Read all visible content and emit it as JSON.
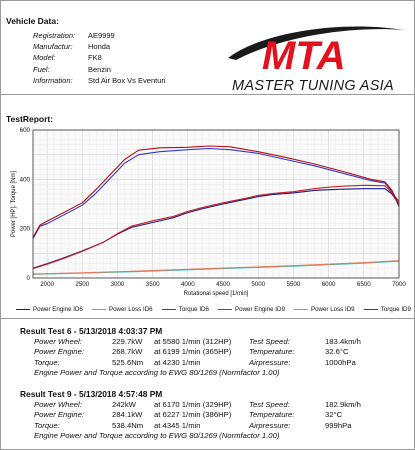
{
  "vehicle": {
    "title": "Vehicle Data:",
    "rows": [
      {
        "key": "Registration:",
        "value": "AE9999"
      },
      {
        "key": "Manufactur:",
        "value": "Honda"
      },
      {
        "key": "Model:",
        "value": "FK8"
      },
      {
        "key": "Fuel:",
        "value": "Benzin"
      },
      {
        "key": "Information:",
        "value": "Std Air Box Vs Eventuri"
      }
    ]
  },
  "logo": {
    "mark": "MTA",
    "text": "MASTER TUNING ASIA",
    "colors": {
      "red": "#e3101d",
      "black": "#1a1a1a"
    }
  },
  "testreport_title": "TestReport:",
  "chart_data": {
    "type": "line",
    "xlabel": "Rotational speed [1/min]",
    "ylabel": "Power [HP], Torque [Nm]",
    "xlim": [
      1800,
      7000
    ],
    "ylim": [
      0,
      600
    ],
    "xticks": [
      2000,
      2500,
      3000,
      3500,
      4000,
      4500,
      5000,
      5500,
      6000,
      6500,
      7000
    ],
    "yticks": [
      0,
      200,
      400,
      600
    ],
    "grid": true,
    "series": [
      {
        "name": "Power Engine ID6",
        "color": "#1c1c8c",
        "width": 1.1,
        "points": [
          [
            1800,
            40
          ],
          [
            2000,
            58
          ],
          [
            2200,
            78
          ],
          [
            2500,
            110
          ],
          [
            2800,
            145
          ],
          [
            3000,
            178
          ],
          [
            3200,
            205
          ],
          [
            3500,
            225
          ],
          [
            3800,
            245
          ],
          [
            4000,
            265
          ],
          [
            4200,
            280
          ],
          [
            4500,
            300
          ],
          [
            4800,
            318
          ],
          [
            5000,
            330
          ],
          [
            5200,
            338
          ],
          [
            5500,
            345
          ],
          [
            5800,
            355
          ],
          [
            6000,
            358
          ],
          [
            6200,
            360
          ],
          [
            6500,
            362
          ],
          [
            6800,
            362
          ],
          [
            6900,
            340
          ],
          [
            7000,
            300
          ]
        ]
      },
      {
        "name": "Power Loss ID6",
        "color": "#2cc3c3",
        "width": 1.1,
        "points": [
          [
            1800,
            15
          ],
          [
            2500,
            20
          ],
          [
            3500,
            28
          ],
          [
            4500,
            38
          ],
          [
            5500,
            48
          ],
          [
            6500,
            60
          ],
          [
            7000,
            68
          ]
        ]
      },
      {
        "name": "Torque ID6",
        "color": "#3535d4",
        "width": 1.1,
        "points": [
          [
            1800,
            160
          ],
          [
            1900,
            210
          ],
          [
            2000,
            220
          ],
          [
            2200,
            250
          ],
          [
            2500,
            295
          ],
          [
            2700,
            345
          ],
          [
            2900,
            405
          ],
          [
            3100,
            465
          ],
          [
            3300,
            500
          ],
          [
            3600,
            512
          ],
          [
            4000,
            520
          ],
          [
            4300,
            525
          ],
          [
            4600,
            520
          ],
          [
            5000,
            505
          ],
          [
            5400,
            480
          ],
          [
            5800,
            455
          ],
          [
            6200,
            425
          ],
          [
            6600,
            395
          ],
          [
            6800,
            385
          ],
          [
            6900,
            350
          ],
          [
            7000,
            290
          ]
        ]
      },
      {
        "name": "Power Engine ID9",
        "color": "#c82020",
        "width": 1.1,
        "points": [
          [
            1800,
            38
          ],
          [
            2000,
            56
          ],
          [
            2200,
            76
          ],
          [
            2500,
            108
          ],
          [
            2800,
            145
          ],
          [
            3000,
            180
          ],
          [
            3200,
            210
          ],
          [
            3500,
            232
          ],
          [
            3800,
            250
          ],
          [
            4000,
            270
          ],
          [
            4200,
            285
          ],
          [
            4500,
            305
          ],
          [
            4800,
            322
          ],
          [
            5000,
            335
          ],
          [
            5200,
            342
          ],
          [
            5500,
            350
          ],
          [
            5800,
            362
          ],
          [
            6000,
            368
          ],
          [
            6200,
            372
          ],
          [
            6500,
            376
          ],
          [
            6800,
            374
          ],
          [
            6900,
            345
          ],
          [
            7000,
            310
          ]
        ]
      },
      {
        "name": "Power Loss ID9",
        "color": "#e27a5a",
        "width": 1.1,
        "points": [
          [
            1800,
            16
          ],
          [
            2500,
            21
          ],
          [
            3500,
            30
          ],
          [
            4500,
            40
          ],
          [
            5500,
            50
          ],
          [
            6500,
            62
          ],
          [
            7000,
            70
          ]
        ]
      },
      {
        "name": "Torque ID9",
        "color": "#b01010",
        "width": 1.1,
        "points": [
          [
            1800,
            165
          ],
          [
            1900,
            215
          ],
          [
            2000,
            230
          ],
          [
            2200,
            260
          ],
          [
            2500,
            305
          ],
          [
            2700,
            360
          ],
          [
            2900,
            420
          ],
          [
            3100,
            480
          ],
          [
            3300,
            518
          ],
          [
            3600,
            528
          ],
          [
            4000,
            530
          ],
          [
            4300,
            535
          ],
          [
            4600,
            532
          ],
          [
            5000,
            512
          ],
          [
            5400,
            488
          ],
          [
            5800,
            462
          ],
          [
            6200,
            432
          ],
          [
            6600,
            400
          ],
          [
            6800,
            390
          ],
          [
            6900,
            355
          ],
          [
            7000,
            295
          ]
        ]
      }
    ]
  },
  "results": [
    {
      "title": "Result Test 6 - 5/13/2018 4:03:37 PM",
      "rows": [
        {
          "label": "Power Wheel:",
          "value": "229.7kW",
          "at": "at 5580 1/min (312HP)",
          "label2": "Test Speed:",
          "value2": "183.4km/h"
        },
        {
          "label": "Power Engine:",
          "value": "268.7kW",
          "at": "at 6199 1/min (365HP)",
          "label2": "Temperature:",
          "value2": "32.6°C"
        },
        {
          "label": "Torque:",
          "value": "525.6Nm",
          "at": "at 4230 1/min",
          "label2": "Airpressure:",
          "value2": "1000hPa"
        }
      ],
      "note": "Engine Power and Torque according to EWG 80/1269 (Normfactor 1.00)"
    },
    {
      "title": "Result Test 9 - 5/13/2018 4:57:48 PM",
      "rows": [
        {
          "label": "Power Wheel:",
          "value": "242kW",
          "at": "at 6170 1/min (329HP)",
          "label2": "Test Speed:",
          "value2": "182.9km/h"
        },
        {
          "label": "Power Engine:",
          "value": "284.1kW",
          "at": "at 6227 1/min (386HP)",
          "label2": "Temperature:",
          "value2": "32°C"
        },
        {
          "label": "Torque:",
          "value": "538.4Nm",
          "at": "at 4345 1/min",
          "label2": "Airpressure:",
          "value2": "999hPa"
        }
      ],
      "note": "Engine Power and Torque according to EWG 80/1269 (Normfactor 1.00)"
    }
  ]
}
